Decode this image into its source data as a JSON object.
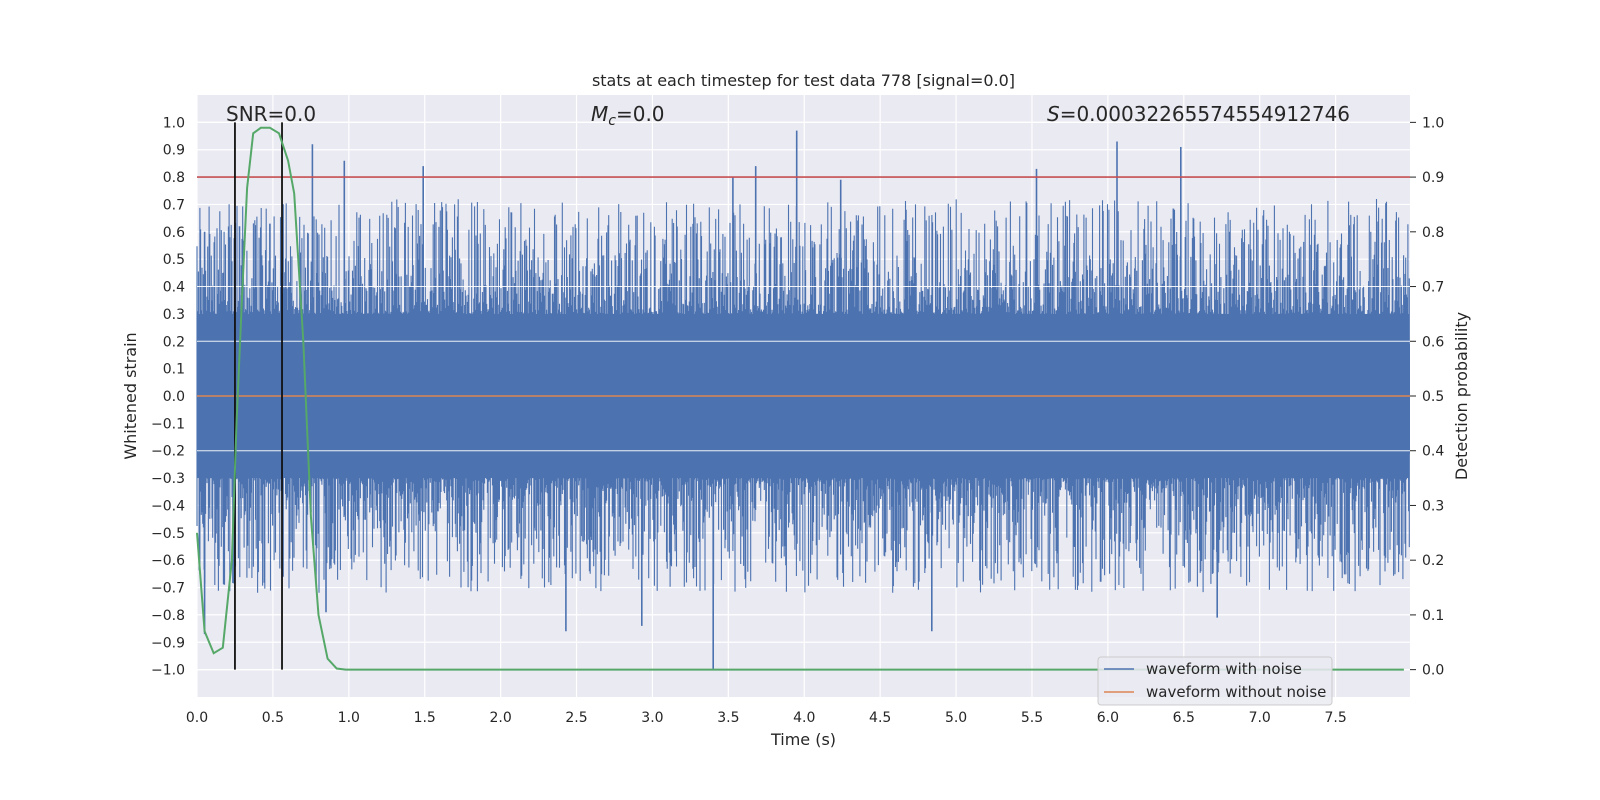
{
  "chart_data": {
    "type": "line",
    "title": "stats at each timestep for test data 778 [signal=0.0]",
    "xlabel": "Time (s)",
    "ylabel": "Whitened strain",
    "y2label": "Detection probability",
    "xlim": [
      0.0,
      7.99
    ],
    "ylim": [
      -1.1,
      1.1
    ],
    "y2lim": [
      -0.05,
      1.05
    ],
    "x_ticks": [
      "0.0",
      "0.5",
      "1.0",
      "1.5",
      "2.0",
      "2.5",
      "3.0",
      "3.5",
      "4.0",
      "4.5",
      "5.0",
      "5.5",
      "6.0",
      "6.5",
      "7.0",
      "7.5"
    ],
    "y_ticks": [
      "1.0",
      "0.9",
      "0.8",
      "0.7",
      "0.6",
      "0.5",
      "0.4",
      "0.3",
      "0.2",
      "0.1",
      "0.0",
      "−0.1",
      "−0.2",
      "−0.3",
      "−0.4",
      "−0.5",
      "−0.6",
      "−0.7",
      "−0.8",
      "−0.9",
      "−1.0"
    ],
    "y2_ticks": [
      "1.0",
      "0.9",
      "0.8",
      "0.7",
      "0.6",
      "0.5",
      "0.4",
      "0.3",
      "0.2",
      "0.1",
      "0.0"
    ],
    "grid": true,
    "legend_position": "bottom-right",
    "annotations": {
      "snr": "SNR=0.0",
      "mc": "M",
      "mc_sub": "c",
      "mc_value": "=0.0",
      "s_label": "S",
      "s_value": "=0.00032265574554912746"
    },
    "threshold": {
      "y2": 0.9,
      "color": "#c44e52"
    },
    "vertical_markers": [
      0.25,
      0.56
    ],
    "series": [
      {
        "name": "waveform with noise",
        "axis": "left",
        "color": "#4c72b0",
        "description": "dense noise band",
        "band_core": 0.19,
        "band_lower": -0.21,
        "peaks": [
          [
            0.05,
            0.6
          ],
          [
            0.28,
            0.62
          ],
          [
            0.48,
            0.63
          ],
          [
            0.76,
            0.92
          ],
          [
            0.97,
            0.86
          ],
          [
            1.49,
            0.84
          ],
          [
            3.53,
            0.8
          ],
          [
            3.68,
            0.84
          ],
          [
            3.95,
            0.97
          ],
          [
            4.24,
            0.79
          ],
          [
            5.53,
            0.83
          ],
          [
            6.06,
            0.93
          ],
          [
            6.48,
            0.91
          ]
        ],
        "troughs": [
          [
            0.05,
            -0.87
          ],
          [
            0.18,
            -0.69
          ],
          [
            0.85,
            -0.79
          ],
          [
            2.43,
            -0.86
          ],
          [
            3.4,
            -1.0
          ],
          [
            2.93,
            -0.84
          ],
          [
            4.84,
            -0.86
          ],
          [
            6.72,
            -0.81
          ]
        ]
      },
      {
        "name": "waveform without noise",
        "axis": "left",
        "color": "#dd8452",
        "y": 0.0
      },
      {
        "axis": "right",
        "color": "#55a868",
        "x": [
          0.0,
          0.05,
          0.11,
          0.17,
          0.23,
          0.26,
          0.3,
          0.33,
          0.37,
          0.42,
          0.48,
          0.54,
          0.6,
          0.64,
          0.7,
          0.75,
          0.8,
          0.86,
          0.92,
          0.98,
          1.05,
          1.5,
          2.0,
          3.0,
          4.0,
          5.0,
          6.0,
          7.0,
          7.95
        ],
        "y": [
          0.25,
          0.07,
          0.03,
          0.04,
          0.2,
          0.45,
          0.7,
          0.88,
          0.98,
          0.99,
          0.99,
          0.98,
          0.93,
          0.87,
          0.6,
          0.28,
          0.1,
          0.02,
          0.002,
          0.0,
          0.0,
          0.0,
          0.0,
          0.0,
          0.0,
          0.0,
          0.0,
          0.0,
          0.0
        ]
      }
    ]
  }
}
